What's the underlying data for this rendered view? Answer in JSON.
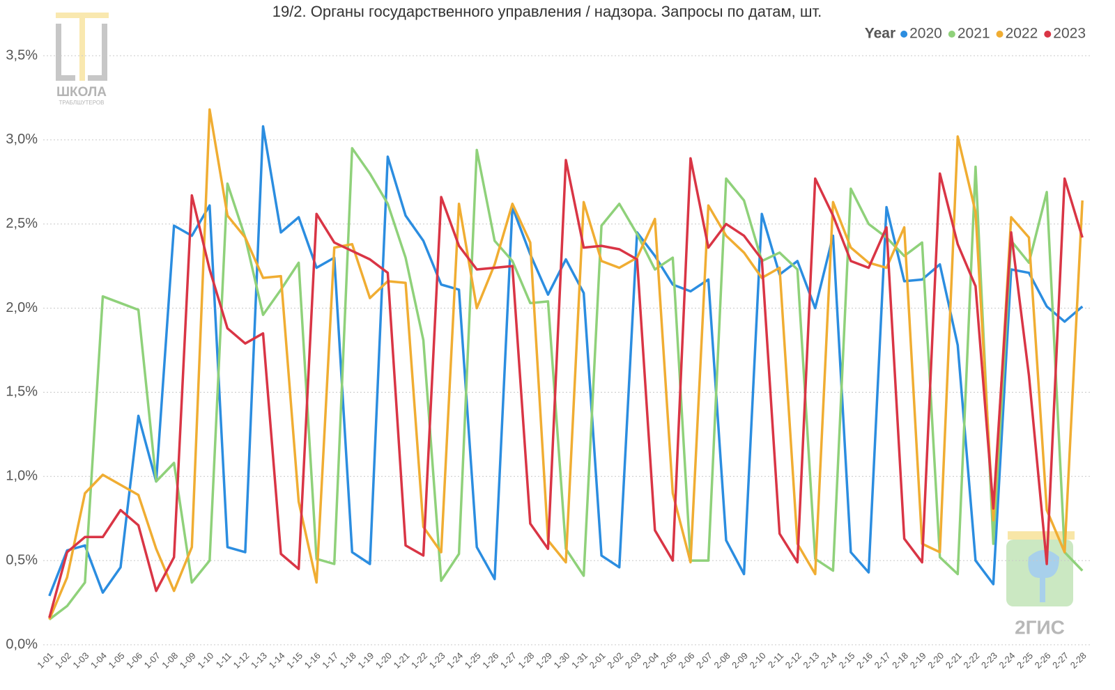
{
  "chart_data": {
    "type": "line",
    "title": "19/2. Органы государственного управления / надзора. Запросы по датам, шт.",
    "legend_title": "Year",
    "categories": [
      "1-01",
      "1-02",
      "1-03",
      "1-04",
      "1-05",
      "1-06",
      "1-07",
      "1-08",
      "1-09",
      "1-10",
      "1-11",
      "1-12",
      "1-13",
      "1-14",
      "1-15",
      "1-16",
      "1-17",
      "1-18",
      "1-19",
      "1-20",
      "1-21",
      "1-22",
      "1-23",
      "1-24",
      "1-25",
      "1-26",
      "1-27",
      "1-28",
      "1-29",
      "1-30",
      "1-31",
      "2-01",
      "2-02",
      "2-03",
      "2-04",
      "2-05",
      "2-06",
      "2-07",
      "2-08",
      "2-09",
      "2-10",
      "2-11",
      "2-12",
      "2-13",
      "2-14",
      "2-15",
      "2-16",
      "2-17",
      "2-18",
      "2-19",
      "2-20",
      "2-21",
      "2-22",
      "2-23",
      "2-24",
      "2-25",
      "2-26",
      "2-27",
      "2-28"
    ],
    "series": [
      {
        "name": "2020",
        "color": "#2b8de0",
        "values": [
          0.29,
          0.56,
          0.59,
          0.31,
          0.46,
          1.36,
          0.97,
          2.49,
          2.43,
          2.61,
          0.58,
          0.55,
          3.08,
          2.45,
          2.54,
          2.24,
          2.3,
          0.55,
          0.48,
          2.9,
          2.55,
          2.4,
          2.14,
          2.11,
          0.58,
          0.39,
          2.6,
          2.32,
          2.08,
          2.29,
          2.09,
          0.53,
          0.46,
          2.45,
          2.31,
          2.14,
          2.1,
          2.17,
          0.62,
          0.42,
          2.56,
          2.2,
          2.28,
          2.0,
          2.43,
          0.55,
          0.43,
          2.6,
          2.16,
          2.17,
          2.26,
          1.78,
          0.5,
          0.36,
          2.23,
          2.21,
          2.01,
          1.92,
          2.01
        ]
      },
      {
        "name": "2021",
        "color": "#8fd17a",
        "values": [
          0.15,
          0.23,
          0.37,
          2.07,
          2.03,
          1.99,
          0.97,
          1.08,
          0.37,
          0.5,
          2.74,
          2.42,
          1.96,
          2.11,
          2.27,
          0.51,
          0.48,
          2.95,
          2.8,
          2.62,
          2.3,
          1.81,
          0.38,
          0.54,
          2.94,
          2.4,
          2.28,
          2.03,
          2.04,
          0.57,
          0.41,
          2.49,
          2.62,
          2.44,
          2.23,
          2.3,
          0.5,
          0.5,
          2.77,
          2.64,
          2.28,
          2.33,
          2.23,
          0.51,
          0.44,
          2.71,
          2.5,
          2.42,
          2.31,
          2.39,
          0.52,
          0.42,
          2.84,
          0.6,
          2.4,
          2.27,
          2.69,
          0.55,
          0.44
        ]
      },
      {
        "name": "2022",
        "color": "#f0ad32",
        "values": [
          0.15,
          0.4,
          0.9,
          1.01,
          0.95,
          0.89,
          0.57,
          0.32,
          0.58,
          3.18,
          2.55,
          2.42,
          2.18,
          2.19,
          0.85,
          0.37,
          2.36,
          2.38,
          2.06,
          2.16,
          2.15,
          0.7,
          0.55,
          2.62,
          2.0,
          2.26,
          2.62,
          2.39,
          0.62,
          0.49,
          2.63,
          2.28,
          2.24,
          2.3,
          2.53,
          0.9,
          0.49,
          2.61,
          2.43,
          2.33,
          2.18,
          2.24,
          0.6,
          0.42,
          2.63,
          2.36,
          2.27,
          2.24,
          2.48,
          0.6,
          0.55,
          3.02,
          2.57,
          0.74,
          2.54,
          2.42,
          0.8,
          0.55,
          2.64
        ]
      },
      {
        "name": "2023",
        "color": "#d93545",
        "values": [
          0.16,
          0.55,
          0.64,
          0.64,
          0.8,
          0.71,
          0.32,
          0.52,
          2.67,
          2.23,
          1.88,
          1.79,
          1.85,
          0.54,
          0.45,
          2.56,
          2.39,
          2.34,
          2.29,
          2.21,
          0.59,
          0.53,
          2.66,
          2.37,
          2.23,
          2.24,
          2.25,
          0.72,
          0.57,
          2.88,
          2.36,
          2.37,
          2.35,
          2.29,
          0.68,
          0.5,
          2.89,
          2.36,
          2.5,
          2.43,
          2.29,
          0.66,
          0.49,
          2.77,
          2.55,
          2.28,
          2.24,
          2.48,
          0.63,
          0.49,
          2.8,
          2.38,
          2.13,
          0.81,
          2.45,
          1.6,
          0.48,
          2.77,
          2.42
        ]
      }
    ],
    "ylim": [
      0,
      3.5
    ],
    "yticks": [
      {
        "value": 0,
        "label": "0,0%"
      },
      {
        "value": 0.5,
        "label": "0,5%"
      },
      {
        "value": 1,
        "label": "1,0%"
      },
      {
        "value": 1.5,
        "label": "1,5%"
      },
      {
        "value": 2,
        "label": "2,0%"
      },
      {
        "value": 2.5,
        "label": "2,5%"
      },
      {
        "value": 3,
        "label": "3,0%"
      },
      {
        "value": 3.5,
        "label": "3,5%"
      }
    ],
    "grid": true
  },
  "watermarks": {
    "school": "ШКОЛА",
    "school_sub": "ТРАБЛШУТЕРОВ",
    "brand": "2ГИС"
  }
}
